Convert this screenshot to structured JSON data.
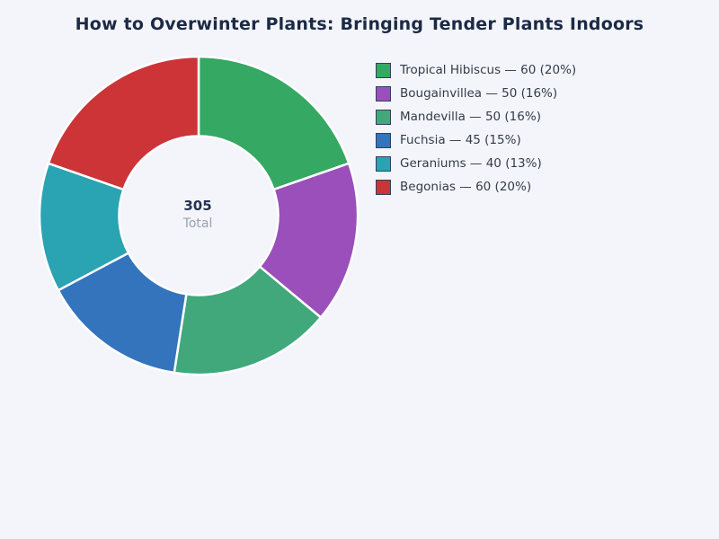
{
  "chart_data": {
    "type": "pie",
    "variant": "donut",
    "title": "How to Overwinter Plants: Bringing Tender Plants Indoors",
    "categories": [
      "Tropical Hibiscus",
      "Bougainvillea",
      "Mandevilla",
      "Fuchsia",
      "Geraniums",
      "Begonias"
    ],
    "values": [
      60,
      50,
      50,
      45,
      40,
      60
    ],
    "percent_labels": [
      "20%",
      "16%",
      "16%",
      "15%",
      "13%",
      "20%"
    ],
    "colors": [
      "#35a863",
      "#9b4fba",
      "#41a87c",
      "#3374bd",
      "#2aa3b3",
      "#cc3438"
    ],
    "total": 305,
    "center_label": {
      "value": "305",
      "caption": "Total"
    },
    "start_angle_deg": 0,
    "clockwise": true,
    "donut_hole_ratio": 0.5,
    "segment_gap_color": "#ffffff",
    "legend_position": "right"
  },
  "legend": {
    "swatch_border_color": "#33415a",
    "items": [
      {
        "label": "Tropical Hibiscus — 60 (20%)",
        "color": "#35a863"
      },
      {
        "label": "Bougainvillea — 50 (16%)",
        "color": "#9b4fba"
      },
      {
        "label": "Mandevilla — 50 (16%)",
        "color": "#41a87c"
      },
      {
        "label": "Fuchsia — 45 (15%)",
        "color": "#3374bd"
      },
      {
        "label": "Geraniums — 40 (13%)",
        "color": "#2aa3b3"
      },
      {
        "label": "Begonias — 60 (20%)",
        "color": "#cc3438"
      }
    ]
  },
  "page": {
    "background_color": "#f4f5fa",
    "title_color": "#1b2a45"
  }
}
